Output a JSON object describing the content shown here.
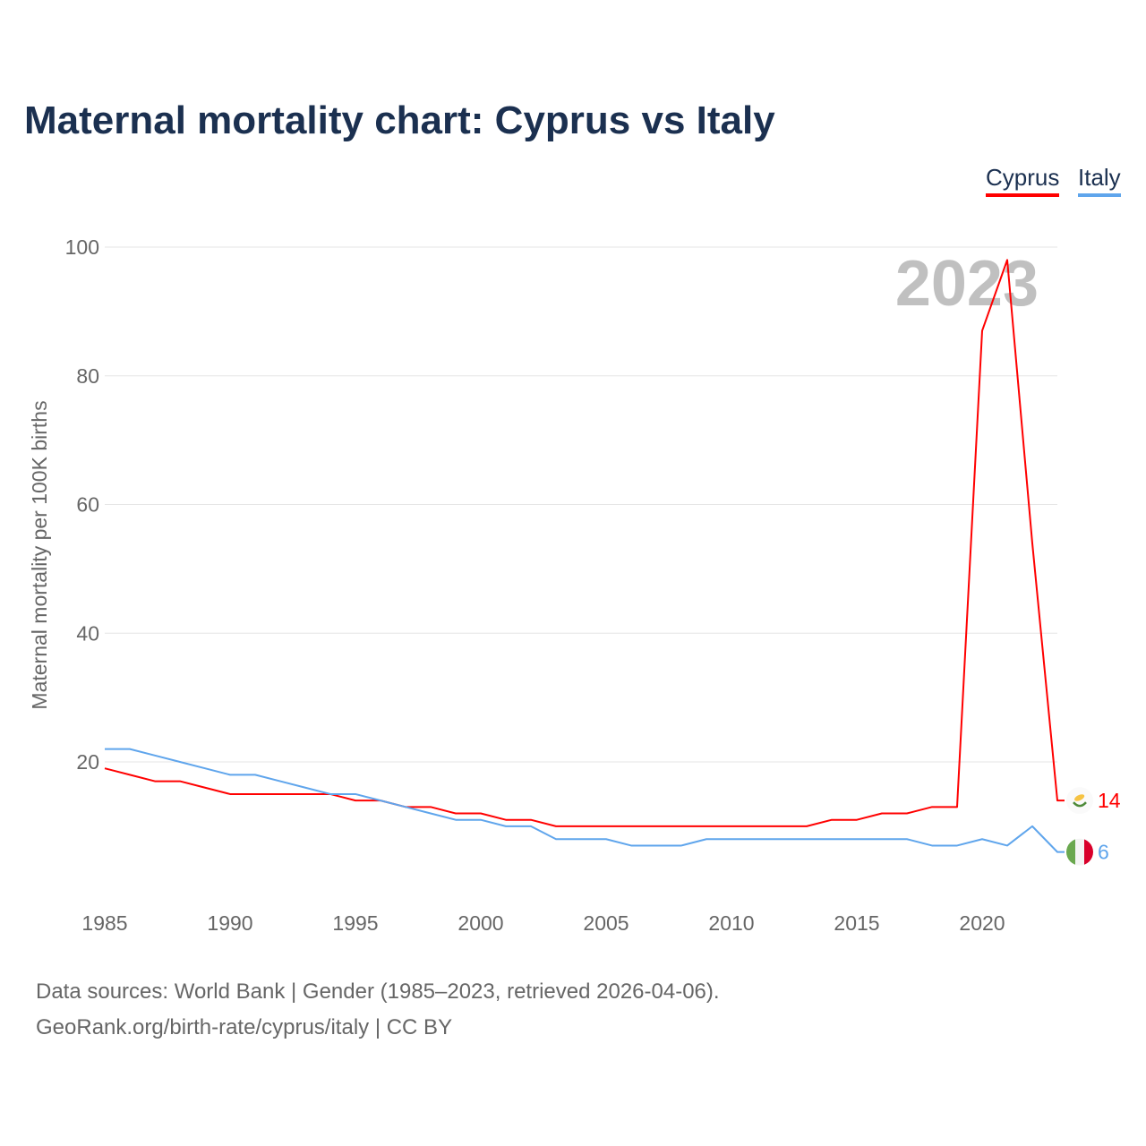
{
  "title": "Maternal mortality chart: Cyprus vs Italy",
  "source_line1": "Data sources: World Bank | Gender (1985–2023, retrieved 2026-04-06).",
  "source_line2": "GeoRank.org/birth-rate/cyprus/italy | CC BY",
  "chart_data": {
    "type": "line",
    "title": "Maternal mortality chart: Cyprus vs Italy",
    "xlabel": "",
    "ylabel": "Maternal mortality per 100K births",
    "xlim": [
      1985,
      2023
    ],
    "ylim": [
      0,
      100
    ],
    "yticks": [
      20,
      40,
      60,
      80,
      100
    ],
    "xticks": [
      1985,
      1990,
      1995,
      2000,
      2005,
      2010,
      2015,
      2020
    ],
    "year_annotation": "2023",
    "legend_position": "top-right",
    "x": [
      1985,
      1986,
      1987,
      1988,
      1989,
      1990,
      1991,
      1992,
      1993,
      1994,
      1995,
      1996,
      1997,
      1998,
      1999,
      2000,
      2001,
      2002,
      2003,
      2004,
      2005,
      2006,
      2007,
      2008,
      2009,
      2010,
      2011,
      2012,
      2013,
      2014,
      2015,
      2016,
      2017,
      2018,
      2019,
      2020,
      2021,
      2022,
      2023
    ],
    "series": [
      {
        "name": "Cyprus",
        "color": "#ff0000",
        "end_label": "14",
        "values": [
          19,
          18,
          17,
          17,
          16,
          15,
          15,
          15,
          15,
          15,
          14,
          14,
          13,
          13,
          12,
          12,
          11,
          11,
          10,
          10,
          10,
          10,
          10,
          10,
          10,
          10,
          10,
          10,
          10,
          11,
          11,
          12,
          12,
          13,
          13,
          87,
          98,
          54,
          14
        ]
      },
      {
        "name": "Italy",
        "color": "#5fa5ec",
        "end_label": "6",
        "values": [
          22,
          22,
          21,
          20,
          19,
          18,
          18,
          17,
          16,
          15,
          15,
          14,
          13,
          12,
          11,
          11,
          10,
          10,
          8,
          8,
          8,
          7,
          7,
          7,
          8,
          8,
          8,
          8,
          8,
          8,
          8,
          8,
          8,
          7,
          7,
          8,
          7,
          10,
          6
        ]
      }
    ]
  }
}
